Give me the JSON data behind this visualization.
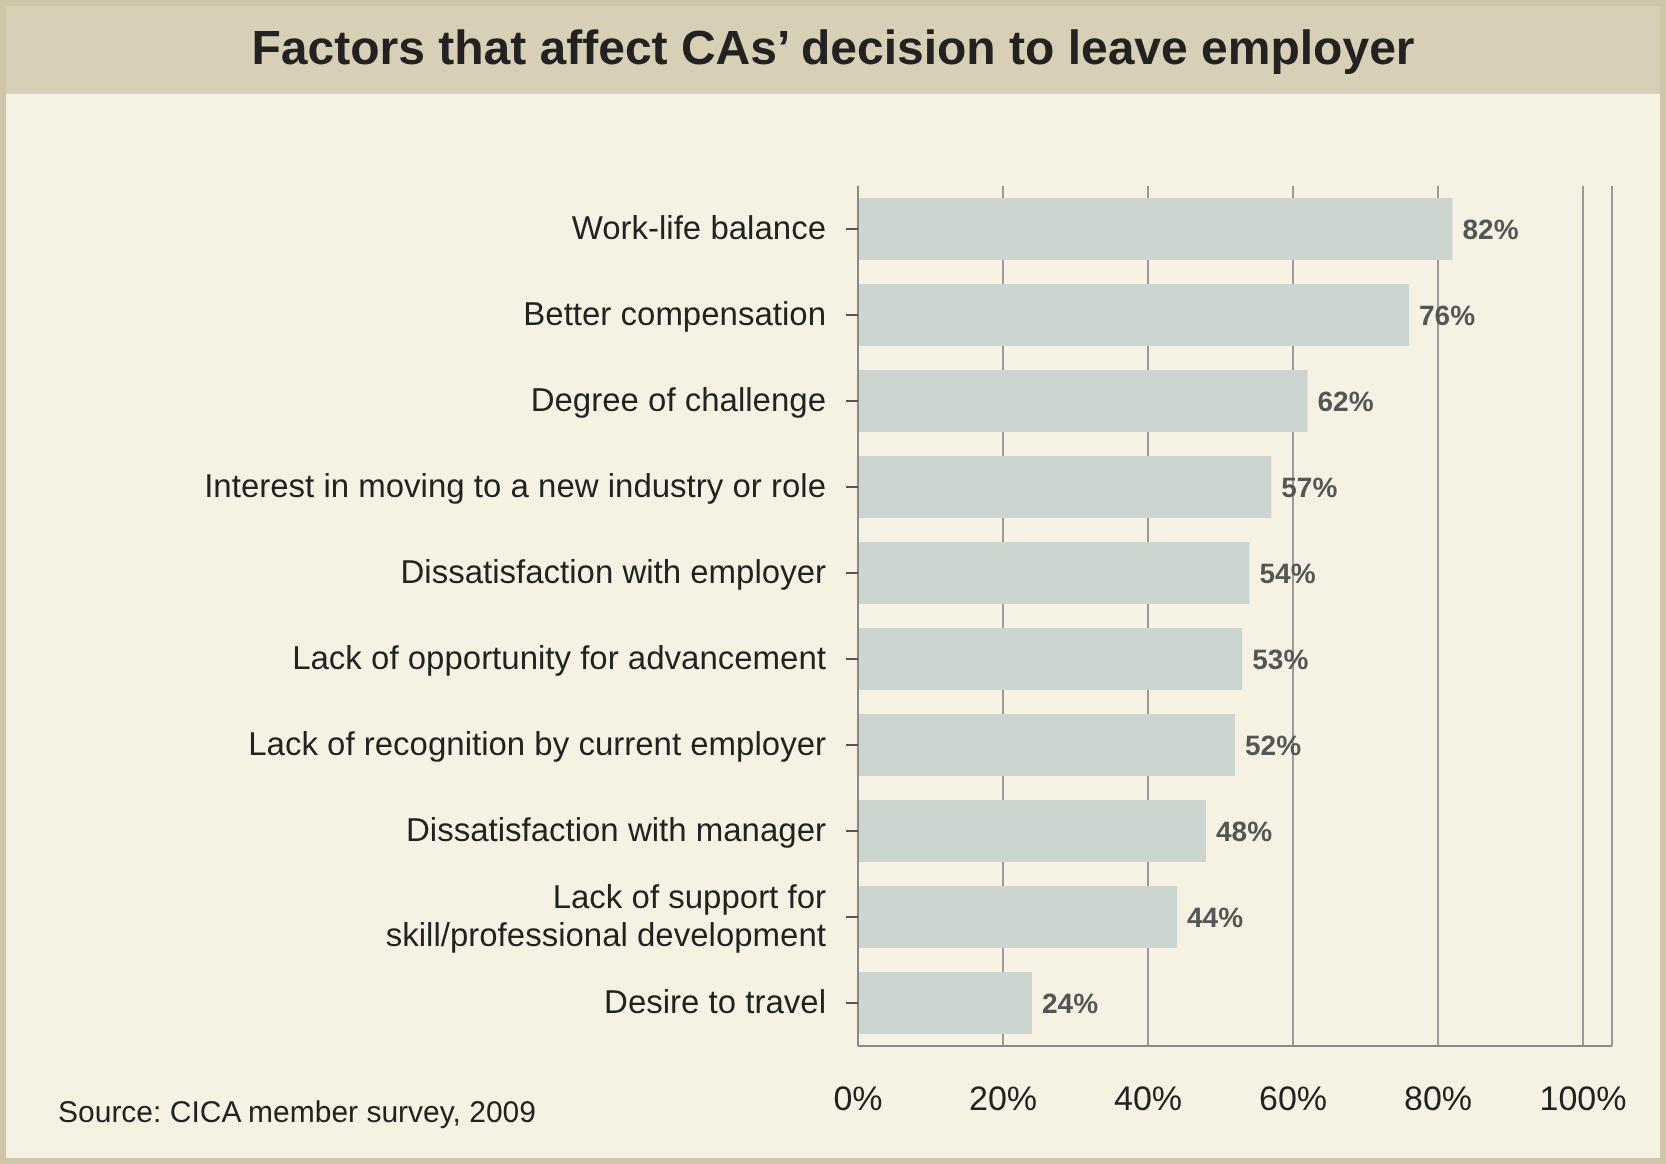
{
  "chart_data": {
    "type": "bar",
    "orientation": "horizontal",
    "title": "Factors that affect CAs’ decision to leave employer",
    "categories": [
      "Work-life balance",
      "Better compensation",
      "Degree of challenge",
      "Interest in moving to a new industry or role",
      "Dissatisfaction with employer",
      "Lack of opportunity for advancement",
      "Lack of recognition by current employer",
      "Dissatisfaction with manager",
      "Lack of support for\nskill/professional development",
      "Desire to travel"
    ],
    "values": [
      82,
      76,
      62,
      57,
      54,
      53,
      52,
      48,
      44,
      24
    ],
    "value_labels": [
      "82%",
      "76%",
      "62%",
      "57%",
      "54%",
      "53%",
      "52%",
      "48%",
      "44%",
      "24%"
    ],
    "color": "#cdd5d1",
    "xlim": [
      0,
      104
    ],
    "xticks": [
      {
        "value": 0,
        "label": "0%"
      },
      {
        "value": 20,
        "label": "20%"
      },
      {
        "value": 40,
        "label": "40%"
      },
      {
        "value": 60,
        "label": "60%"
      },
      {
        "value": 80,
        "label": "80%"
      },
      {
        "value": 100,
        "label": "100%"
      }
    ],
    "grid": "x",
    "annotations": [
      "Source: CICA member survey, 2009"
    ]
  }
}
